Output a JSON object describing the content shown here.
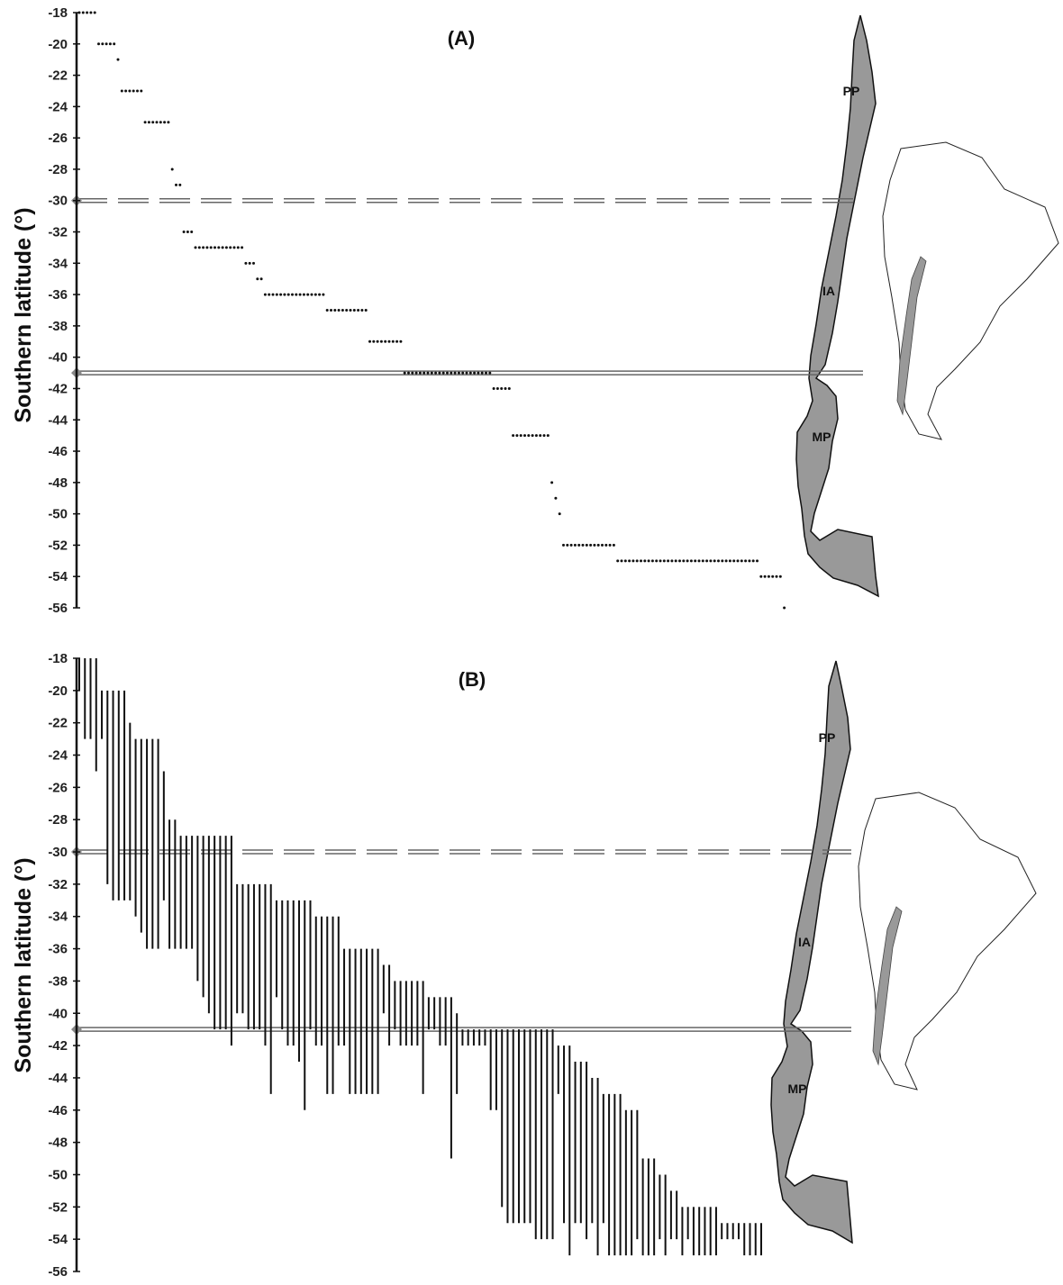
{
  "chart_data": [
    {
      "panel": "(A)",
      "type": "scatter",
      "ylabel": "Southern latitude (°)",
      "ylim": [
        -56,
        -18
      ],
      "yticks": [
        -18,
        -20,
        -22,
        -24,
        -26,
        -28,
        -30,
        -32,
        -34,
        -36,
        -38,
        -40,
        -42,
        -44,
        -46,
        -48,
        -50,
        -52,
        -54,
        -56
      ],
      "grid": false,
      "reference_lines": [
        {
          "style": "dashed-double",
          "y": -30
        },
        {
          "style": "solid-double",
          "y": -41
        }
      ],
      "region_labels": [
        "PP",
        "IA",
        "MP"
      ],
      "runs": [
        {
          "y": -18,
          "x0": 0,
          "count": 5
        },
        {
          "y": -20,
          "x0": 5,
          "count": 5
        },
        {
          "y": -21,
          "x0": 10,
          "count": 1
        },
        {
          "y": -23,
          "x0": 11,
          "count": 6
        },
        {
          "y": -25,
          "x0": 17,
          "count": 7
        },
        {
          "y": -28,
          "x0": 24,
          "count": 1
        },
        {
          "y": -29,
          "x0": 25,
          "count": 2
        },
        {
          "y": -32,
          "x0": 27,
          "count": 3
        },
        {
          "y": -33,
          "x0": 30,
          "count": 13
        },
        {
          "y": -34,
          "x0": 43,
          "count": 3
        },
        {
          "y": -35,
          "x0": 46,
          "count": 2
        },
        {
          "y": -36,
          "x0": 48,
          "count": 16
        },
        {
          "y": -37,
          "x0": 64,
          "count": 11
        },
        {
          "y": -39,
          "x0": 75,
          "count": 9
        },
        {
          "y": -41,
          "x0": 84,
          "count": 23
        },
        {
          "y": -42,
          "x0": 107,
          "count": 5
        },
        {
          "y": -45,
          "x0": 112,
          "count": 10
        },
        {
          "y": -48,
          "x0": 122,
          "count": 1
        },
        {
          "y": -49,
          "x0": 123,
          "count": 1
        },
        {
          "y": -50,
          "x0": 124,
          "count": 1
        },
        {
          "y": -52,
          "x0": 125,
          "count": 14
        },
        {
          "y": -53,
          "x0": 139,
          "count": 37
        },
        {
          "y": -54,
          "x0": 176,
          "count": 6
        },
        {
          "y": -56,
          "x0": 182,
          "count": 1
        }
      ]
    },
    {
      "panel": "(B)",
      "type": "range",
      "ylabel": "Southern latitude (°)",
      "ylim": [
        -56,
        -18
      ],
      "yticks": [
        -18,
        -20,
        -22,
        -24,
        -26,
        -28,
        -30,
        -32,
        -34,
        -36,
        -38,
        -40,
        -42,
        -44,
        -46,
        -48,
        -50,
        -52,
        -54,
        -56
      ],
      "grid": false,
      "reference_lines": [
        {
          "style": "dashed-double",
          "y": -30
        },
        {
          "style": "solid-double",
          "y": -41
        }
      ],
      "region_labels": [
        "PP",
        "IA",
        "MP"
      ],
      "ranges": [
        [
          -18,
          -20
        ],
        [
          -18,
          -23
        ],
        [
          -18,
          -23
        ],
        [
          -18,
          -25
        ],
        [
          -20,
          -23
        ],
        [
          -20,
          -32
        ],
        [
          -20,
          -33
        ],
        [
          -20,
          -33
        ],
        [
          -20,
          -33
        ],
        [
          -22,
          -33
        ],
        [
          -23,
          -34
        ],
        [
          -23,
          -35
        ],
        [
          -23,
          -36
        ],
        [
          -23,
          -36
        ],
        [
          -23,
          -36
        ],
        [
          -25,
          -33
        ],
        [
          -28,
          -36
        ],
        [
          -28,
          -36
        ],
        [
          -29,
          -36
        ],
        [
          -29,
          -36
        ],
        [
          -29,
          -36
        ],
        [
          -29,
          -38
        ],
        [
          -29,
          -39
        ],
        [
          -29,
          -40
        ],
        [
          -29,
          -41
        ],
        [
          -29,
          -41
        ],
        [
          -29,
          -41
        ],
        [
          -29,
          -42
        ],
        [
          -32,
          -40
        ],
        [
          -32,
          -40
        ],
        [
          -32,
          -41
        ],
        [
          -32,
          -41
        ],
        [
          -32,
          -41
        ],
        [
          -32,
          -42
        ],
        [
          -32,
          -45
        ],
        [
          -33,
          -39
        ],
        [
          -33,
          -41
        ],
        [
          -33,
          -42
        ],
        [
          -33,
          -42
        ],
        [
          -33,
          -43
        ],
        [
          -33,
          -46
        ],
        [
          -33,
          -41
        ],
        [
          -34,
          -42
        ],
        [
          -34,
          -42
        ],
        [
          -34,
          -45
        ],
        [
          -34,
          -45
        ],
        [
          -34,
          -42
        ],
        [
          -36,
          -42
        ],
        [
          -36,
          -45
        ],
        [
          -36,
          -45
        ],
        [
          -36,
          -45
        ],
        [
          -36,
          -45
        ],
        [
          -36,
          -45
        ],
        [
          -36,
          -45
        ],
        [
          -37,
          -40
        ],
        [
          -37,
          -42
        ],
        [
          -38,
          -41
        ],
        [
          -38,
          -42
        ],
        [
          -38,
          -42
        ],
        [
          -38,
          -42
        ],
        [
          -38,
          -42
        ],
        [
          -38,
          -45
        ],
        [
          -39,
          -41
        ],
        [
          -39,
          -41
        ],
        [
          -39,
          -42
        ],
        [
          -39,
          -42
        ],
        [
          -39,
          -49
        ],
        [
          -40,
          -45
        ],
        [
          -41,
          -42
        ],
        [
          -41,
          -42
        ],
        [
          -41,
          -42
        ],
        [
          -41,
          -42
        ],
        [
          -41,
          -42
        ],
        [
          -41,
          -46
        ],
        [
          -41,
          -46
        ],
        [
          -41,
          -52
        ],
        [
          -41,
          -53
        ],
        [
          -41,
          -53
        ],
        [
          -41,
          -53
        ],
        [
          -41,
          -53
        ],
        [
          -41,
          -53
        ],
        [
          -41,
          -54
        ],
        [
          -41,
          -54
        ],
        [
          -41,
          -54
        ],
        [
          -41,
          -54
        ],
        [
          -42,
          -45
        ],
        [
          -42,
          -53
        ],
        [
          -42,
          -55
        ],
        [
          -43,
          -53
        ],
        [
          -43,
          -53
        ],
        [
          -43,
          -54
        ],
        [
          -44,
          -53
        ],
        [
          -44,
          -55
        ],
        [
          -45,
          -53
        ],
        [
          -45,
          -55
        ],
        [
          -45,
          -55
        ],
        [
          -45,
          -55
        ],
        [
          -46,
          -55
        ],
        [
          -46,
          -55
        ],
        [
          -46,
          -54
        ],
        [
          -49,
          -55
        ],
        [
          -49,
          -55
        ],
        [
          -49,
          -55
        ],
        [
          -50,
          -54
        ],
        [
          -50,
          -55
        ],
        [
          -51,
          -54
        ],
        [
          -51,
          -54
        ],
        [
          -52,
          -55
        ],
        [
          -52,
          -54
        ],
        [
          -52,
          -55
        ],
        [
          -52,
          -55
        ],
        [
          -52,
          -55
        ],
        [
          -52,
          -55
        ],
        [
          -52,
          -55
        ],
        [
          -53,
          -54
        ],
        [
          -53,
          -54
        ],
        [
          -53,
          -54
        ],
        [
          -53,
          -54
        ],
        [
          -53,
          -55
        ],
        [
          -53,
          -55
        ],
        [
          -53,
          -55
        ],
        [
          -53,
          -55
        ]
      ]
    }
  ]
}
